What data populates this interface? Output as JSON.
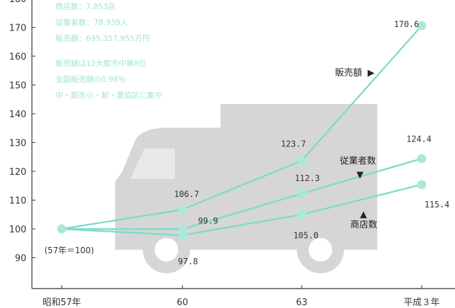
{
  "chart_data": {
    "type": "line",
    "categories": [
      "昭和57年",
      "60",
      "63",
      "平成３年"
    ],
    "ylim": [
      85,
      180
    ],
    "yticks": [
      90,
      100,
      110,
      120,
      130,
      140,
      150,
      160,
      170,
      180
    ],
    "series": [
      {
        "name": "販売額",
        "values": [
          100,
          106.7,
          123.7,
          170.6
        ],
        "labels": [
          "",
          "106.7",
          "123.7",
          "170.6"
        ]
      },
      {
        "name": "従業者数",
        "values": [
          100,
          99.9,
          112.3,
          124.4
        ],
        "labels": [
          "",
          "99.9",
          "112.3",
          "124.4"
        ]
      },
      {
        "name": "商店数",
        "values": [
          100,
          97.8,
          105.0,
          115.4
        ],
        "labels": [
          "",
          "97.8",
          "105.0",
          "115.4"
        ]
      }
    ],
    "base_note": "(57年＝100)",
    "legend_markers": {
      "販売額": "▶",
      "従業者数": "▼",
      "商店数": "▲"
    },
    "notes": [
      "商店数：7,853店",
      "従業者数：78,939人",
      "販売額：695,357,955万円",
      "販売額は12大都市中第8位",
      "全国販売額の0.98％",
      "中・卸売小・卸・農協区に集中"
    ],
    "colors": {
      "line": "#7fdcc8",
      "marker": "#a8ead9",
      "background_truck": "#d6d6d6",
      "note_text": "#9ee6d6",
      "axis": "#333333"
    },
    "background_icon": "truck-icon"
  }
}
